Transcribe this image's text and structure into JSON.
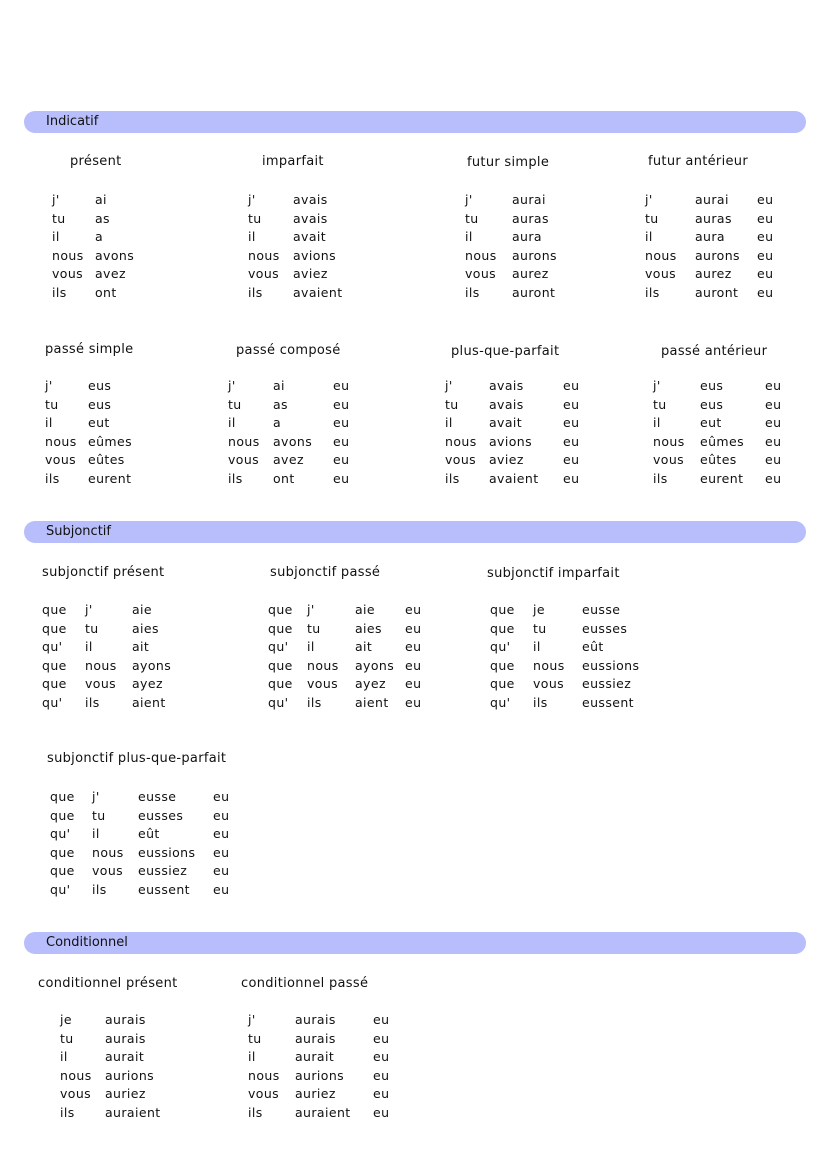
{
  "sections": [
    {
      "label": "Indicatif",
      "blocks": [
        {
          "title": "présent",
          "rows": [
            [
              "j'",
              "ai"
            ],
            [
              "tu",
              "as"
            ],
            [
              "il",
              "a"
            ],
            [
              "nous",
              "avons"
            ],
            [
              "vous",
              "avez"
            ],
            [
              "ils",
              "ont"
            ]
          ]
        },
        {
          "title": "imparfait",
          "rows": [
            [
              "j'",
              "avais"
            ],
            [
              "tu",
              "avais"
            ],
            [
              "il",
              "avait"
            ],
            [
              "nous",
              "avions"
            ],
            [
              "vous",
              "aviez"
            ],
            [
              "ils",
              "avaient"
            ]
          ]
        },
        {
          "title": "futur simple",
          "rows": [
            [
              "j'",
              "aurai"
            ],
            [
              "tu",
              "auras"
            ],
            [
              "il",
              "aura"
            ],
            [
              "nous",
              "aurons"
            ],
            [
              "vous",
              "aurez"
            ],
            [
              "ils",
              "auront"
            ]
          ]
        },
        {
          "title": "futur antérieur",
          "rows": [
            [
              "j'",
              "aurai",
              "eu"
            ],
            [
              "tu",
              "auras",
              "eu"
            ],
            [
              "il",
              "aura",
              "eu"
            ],
            [
              "nous",
              "aurons",
              "eu"
            ],
            [
              "vous",
              "aurez",
              "eu"
            ],
            [
              "ils",
              "auront",
              "eu"
            ]
          ]
        },
        {
          "title": "passé simple",
          "rows": [
            [
              "j'",
              "eus"
            ],
            [
              "tu",
              "eus"
            ],
            [
              "il",
              "eut"
            ],
            [
              "nous",
              "eûmes"
            ],
            [
              "vous",
              "eûtes"
            ],
            [
              "ils",
              "eurent"
            ]
          ]
        },
        {
          "title": "passé composé",
          "rows": [
            [
              "j'",
              "ai",
              "eu"
            ],
            [
              "tu",
              "as",
              "eu"
            ],
            [
              "il",
              "a",
              "eu"
            ],
            [
              "nous",
              "avons",
              "eu"
            ],
            [
              "vous",
              "avez",
              "eu"
            ],
            [
              "ils",
              "ont",
              "eu"
            ]
          ]
        },
        {
          "title": "plus-que-parfait",
          "rows": [
            [
              "j'",
              "avais",
              "eu"
            ],
            [
              "tu",
              "avais",
              "eu"
            ],
            [
              "il",
              "avait",
              "eu"
            ],
            [
              "nous",
              "avions",
              "eu"
            ],
            [
              "vous",
              "aviez",
              "eu"
            ],
            [
              "ils",
              "avaient",
              "eu"
            ]
          ]
        },
        {
          "title": "passé antérieur",
          "rows": [
            [
              "j'",
              "eus",
              "eu"
            ],
            [
              "tu",
              "eus",
              "eu"
            ],
            [
              "il",
              "eut",
              "eu"
            ],
            [
              "nous",
              "eûmes",
              "eu"
            ],
            [
              "vous",
              "eûtes",
              "eu"
            ],
            [
              "ils",
              "eurent",
              "eu"
            ]
          ]
        }
      ]
    },
    {
      "label": "Subjonctif",
      "blocks": [
        {
          "title": "subjonctif présent",
          "rows": [
            [
              "que",
              "j'",
              "aie"
            ],
            [
              "que",
              "tu",
              "aies"
            ],
            [
              "qu'",
              "il",
              "ait"
            ],
            [
              "que",
              "nous",
              "ayons"
            ],
            [
              "que",
              "vous",
              "ayez"
            ],
            [
              "qu'",
              "ils",
              "aient"
            ]
          ]
        },
        {
          "title": "subjonctif passé",
          "rows": [
            [
              "que",
              "j'",
              "aie",
              "eu"
            ],
            [
              "que",
              "tu",
              "aies",
              "eu"
            ],
            [
              "qu'",
              "il",
              "ait",
              "eu"
            ],
            [
              "que",
              "nous",
              "ayons",
              "eu"
            ],
            [
              "que",
              "vous",
              "ayez",
              "eu"
            ],
            [
              "qu'",
              "ils",
              "aient",
              "eu"
            ]
          ]
        },
        {
          "title": "subjonctif imparfait",
          "rows": [
            [
              "que",
              "je",
              "eusse"
            ],
            [
              "que",
              "tu",
              "eusses"
            ],
            [
              "qu'",
              "il",
              "eût"
            ],
            [
              "que",
              "nous",
              "eussions"
            ],
            [
              "que",
              "vous",
              "eussiez"
            ],
            [
              "qu'",
              "ils",
              "eussent"
            ]
          ]
        },
        {
          "title": "subjonctif plus-que-parfait",
          "rows": [
            [
              "que",
              "j'",
              "eusse",
              "eu"
            ],
            [
              "que",
              "tu",
              "eusses",
              "eu"
            ],
            [
              "qu'",
              "il",
              "eût",
              "eu"
            ],
            [
              "que",
              "nous",
              "eussions",
              "eu"
            ],
            [
              "que",
              "vous",
              "eussiez",
              "eu"
            ],
            [
              "qu'",
              "ils",
              "eussent",
              "eu"
            ]
          ]
        }
      ]
    },
    {
      "label": "Conditionnel",
      "blocks": [
        {
          "title": "conditionnel présent",
          "rows": [
            [
              "je",
              "aurais"
            ],
            [
              "tu",
              "aurais"
            ],
            [
              "il",
              "aurait"
            ],
            [
              "nous",
              "aurions"
            ],
            [
              "vous",
              "auriez"
            ],
            [
              "ils",
              "auraient"
            ]
          ]
        },
        {
          "title": "conditionnel passé",
          "rows": [
            [
              "j'",
              "aurais",
              "eu"
            ],
            [
              "tu",
              "aurais",
              "eu"
            ],
            [
              "il",
              "aurait",
              "eu"
            ],
            [
              "nous",
              "aurions",
              "eu"
            ],
            [
              "vous",
              "auriez",
              "eu"
            ],
            [
              "ils",
              "auraient",
              "eu"
            ]
          ]
        }
      ]
    }
  ],
  "colors": {
    "banner": "#b7befb",
    "text": "#111111"
  }
}
